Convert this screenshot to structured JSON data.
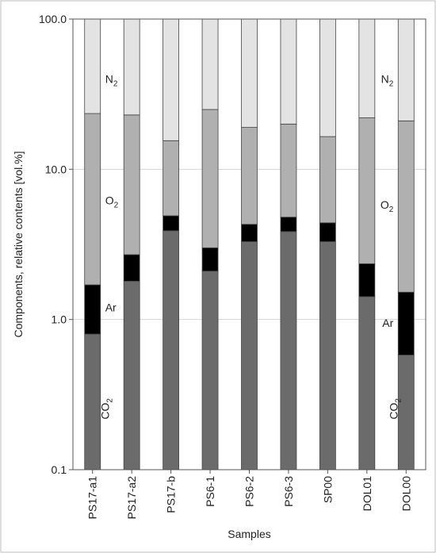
{
  "chart_data": {
    "type": "bar",
    "stacked": true,
    "yscale": "log",
    "ylim": [
      0.1,
      100
    ],
    "y_ticks": [
      "0.1",
      "1.0",
      "10.0",
      "100.0"
    ],
    "y_tick_values": [
      0.1,
      1,
      10,
      100
    ],
    "ylabel": "Components, relative contents [vol.%]",
    "xlabel": "Samples",
    "grid": true,
    "categories": [
      "PS17-a1",
      "PS17-a2",
      "PS17-b",
      "PS6-1",
      "PS6-2",
      "PS6-3",
      "SP00",
      "DOL01",
      "DOL00"
    ],
    "series": [
      {
        "name": "CO2",
        "label": "CO",
        "sub": "2",
        "color": "#6b6b6b",
        "top": [
          0.8,
          1.8,
          3.9,
          2.1,
          3.3,
          3.85,
          3.3,
          1.42,
          0.58
        ]
      },
      {
        "name": "Ar",
        "label": "Ar",
        "sub": "",
        "color": "#000000",
        "top": [
          1.7,
          2.7,
          4.9,
          3.0,
          4.3,
          4.8,
          4.4,
          2.35,
          1.52
        ]
      },
      {
        "name": "O2",
        "label": "O",
        "sub": "2",
        "color": "#b0b0b0",
        "top": [
          23.5,
          23.0,
          15.5,
          25.0,
          19.0,
          20.0,
          16.5,
          22.0,
          21.0
        ]
      },
      {
        "name": "N2",
        "label": "N",
        "sub": "2",
        "color": "#e3e3e3",
        "top": [
          100,
          100,
          100,
          100,
          100,
          100,
          100,
          100,
          100
        ]
      }
    ],
    "annotations": [
      {
        "series": "N2",
        "bar": 0,
        "value": 40
      },
      {
        "series": "O2",
        "bar": 0,
        "value": 6.2
      },
      {
        "series": "Ar",
        "bar": 0,
        "value": 1.2
      },
      {
        "series": "CO2",
        "bar": 0,
        "value": 0.27
      },
      {
        "series": "N2",
        "bar": 8,
        "value": 40
      },
      {
        "series": "O2",
        "bar": 8,
        "value": 5.8
      },
      {
        "series": "Ar",
        "bar": 8,
        "value": 0.95
      },
      {
        "series": "CO2",
        "bar": 8,
        "value": 0.27
      }
    ]
  }
}
